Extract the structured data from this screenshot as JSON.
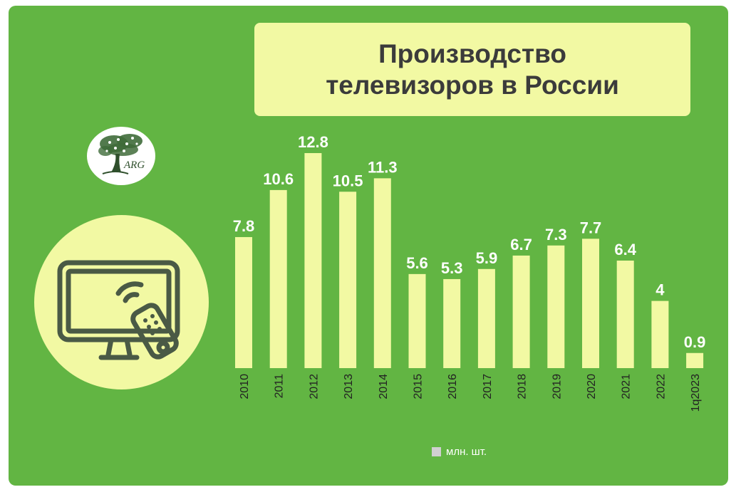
{
  "title": {
    "line1": "Производство",
    "line2": "телевизоров в России"
  },
  "logo": {
    "text": "ARG",
    "icon": "tree-icon"
  },
  "illustration": {
    "icon": "tv-remote-icon"
  },
  "colors": {
    "background": "#62b543",
    "bar": "#f2f9a3",
    "title_box": "#f2f9a3",
    "title_text": "#3b3b3b",
    "label_text": "#ffffff",
    "tick_text": "#222222",
    "icon_stroke": "#4a5a45",
    "legend_swatch": "#d0d0d0"
  },
  "chart_data": {
    "type": "bar",
    "categories": [
      "2010",
      "2011",
      "2012",
      "2013",
      "2014",
      "2015",
      "2016",
      "2017",
      "2018",
      "2019",
      "2020",
      "2021",
      "2022",
      "1q2023"
    ],
    "series": [
      {
        "name": "млн. шт.",
        "values": [
          7.8,
          10.6,
          12.8,
          10.5,
          11.3,
          5.6,
          5.3,
          5.9,
          6.7,
          7.3,
          7.7,
          6.4,
          4,
          0.9
        ]
      }
    ],
    "data_labels": [
      "7.8",
      "10.6",
      "12.8",
      "10.5",
      "11.3",
      "5.6",
      "5.3",
      "5.9",
      "6.7",
      "7.3",
      "7.7",
      "6.4",
      "4",
      "0.9"
    ],
    "ylim": [
      0,
      12.8
    ],
    "grid": false,
    "legend_position": "bottom"
  }
}
